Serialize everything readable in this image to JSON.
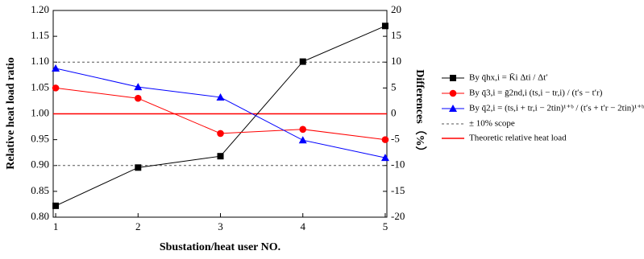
{
  "chart_data": {
    "type": "line",
    "xlabel": "Sbustation/heat user NO.",
    "ylabel": "Relative heat load ratio",
    "y2label": "Differences（%）",
    "x": [
      1,
      2,
      3,
      4,
      5
    ],
    "xlim": [
      0.97,
      5.02
    ],
    "xticks": [
      1,
      2,
      3,
      4,
      5
    ],
    "ylim": [
      0.8,
      1.2
    ],
    "yticks": [
      {
        "value": 0.8,
        "label": "0.80"
      },
      {
        "value": 0.85,
        "label": "0.85"
      },
      {
        "value": 0.9,
        "label": "0.90"
      },
      {
        "value": 0.95,
        "label": "0.95"
      },
      {
        "value": 1.0,
        "label": "1.00"
      },
      {
        "value": 1.05,
        "label": "1.05"
      },
      {
        "value": 1.1,
        "label": "1.10"
      },
      {
        "value": 1.15,
        "label": "1.15"
      },
      {
        "value": 1.2,
        "label": "1.20"
      }
    ],
    "y2lim": [
      -20,
      20
    ],
    "y2ticks": [
      -20,
      -15,
      -10,
      -5,
      0,
      5,
      10,
      15,
      20
    ],
    "series": [
      {
        "name": "By q̄hx,i = K̄i Δti / Δt′",
        "color": "#000000",
        "marker": "square",
        "values": [
          0.822,
          0.896,
          0.918,
          1.101,
          1.17
        ]
      },
      {
        "name": "By q̄3,i = ḡ2nd,i (ts,i − tr,i) / (t′s − t′r)",
        "color": "#ff0000",
        "marker": "circle",
        "values": [
          1.05,
          1.03,
          0.962,
          0.97,
          0.95
        ]
      },
      {
        "name": "By q̄2,i = (ts,i + tr,i − 2tin)¹⁺ᵇ / (t′s + t′r − 2tin)¹⁺ᵇ",
        "color": "#0000ff",
        "marker": "triangle",
        "values": [
          1.088,
          1.052,
          1.032,
          0.949,
          0.915
        ]
      }
    ],
    "reference_lines": [
      {
        "name": "± 10% scope",
        "color": "#555555",
        "dashed": true,
        "values": [
          1.1,
          0.9
        ]
      },
      {
        "name": "Theoretic relative heat load",
        "color": "#ff0000",
        "dashed": false,
        "values": [
          1.0
        ]
      }
    ]
  }
}
